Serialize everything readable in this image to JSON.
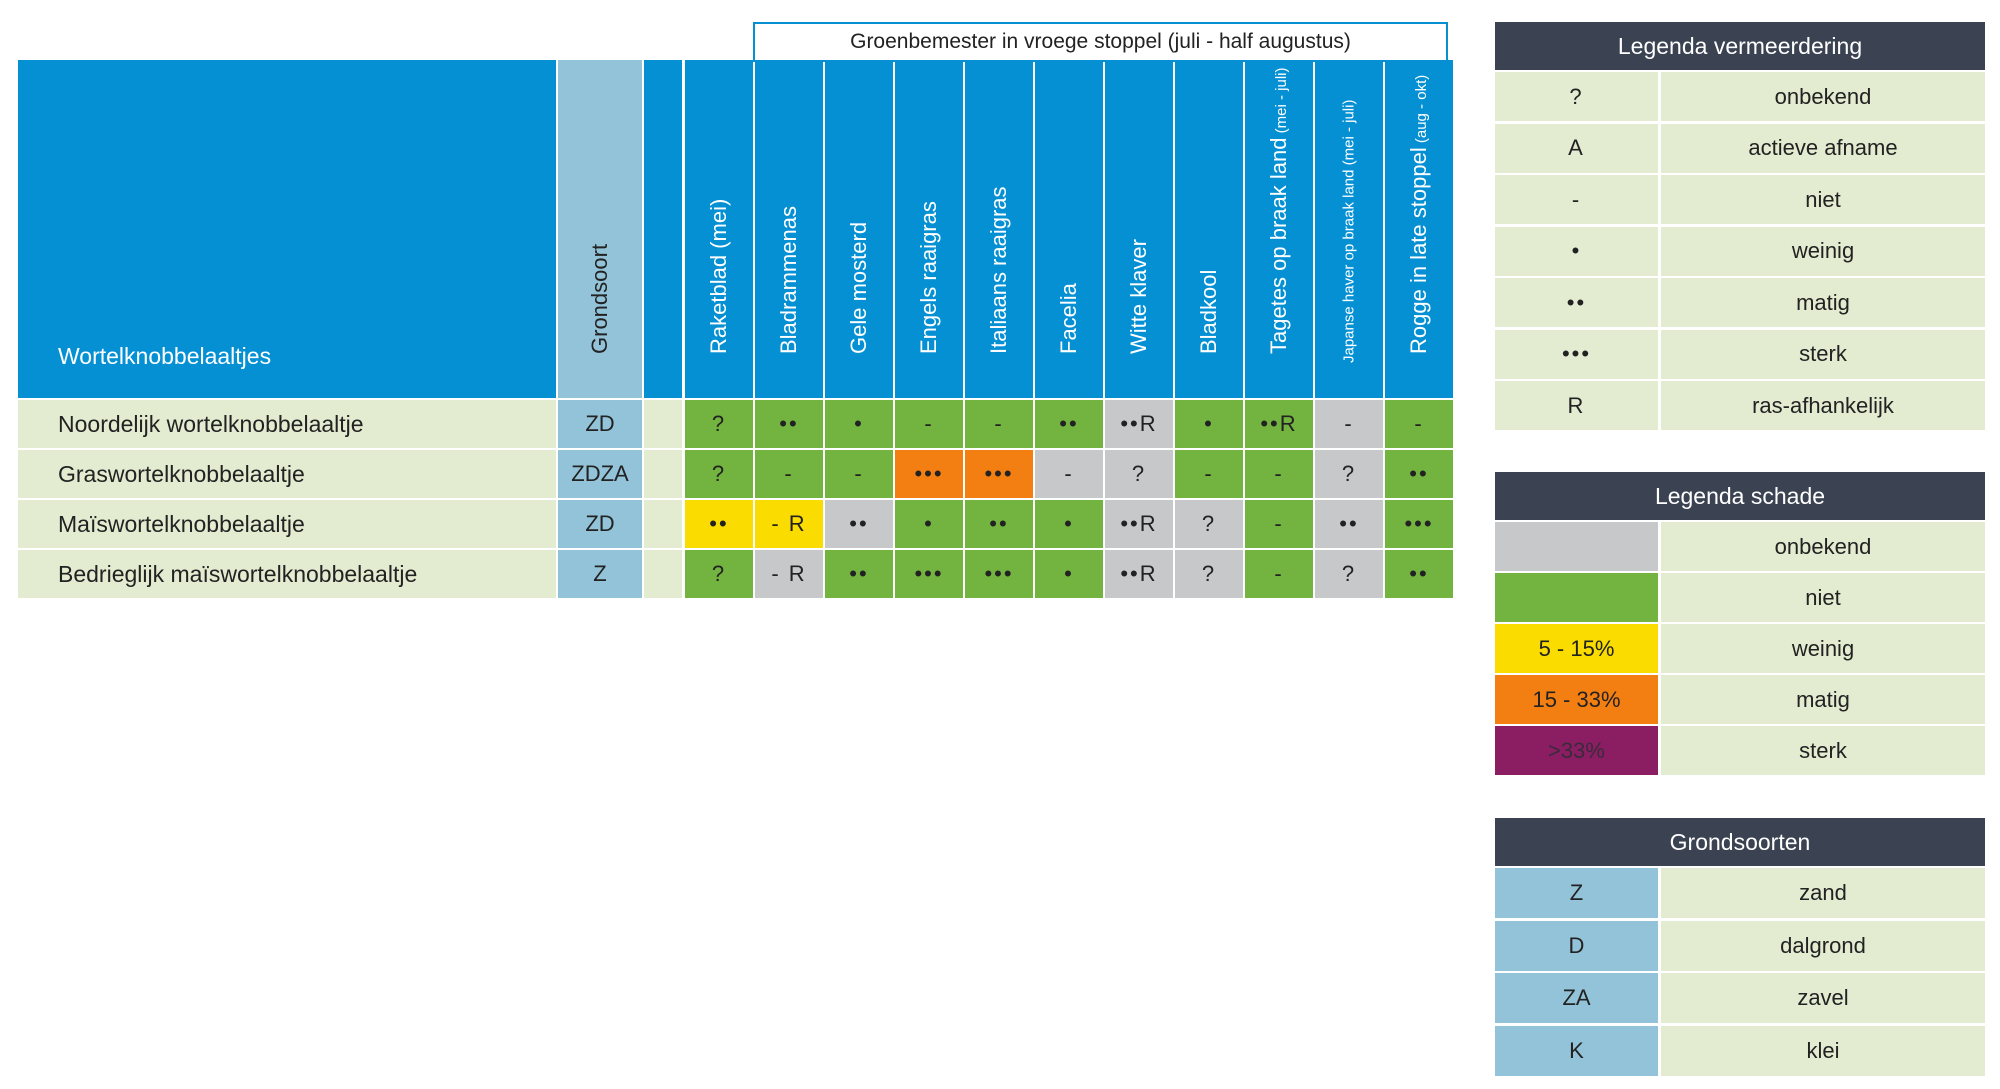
{
  "group_header": "Groenbemester in vroege stoppel (juli - half augustus)",
  "main_header": "Wortelknobbelaaltjes",
  "soil_header": "Grondsoort",
  "crop_headers": [
    {
      "label": "Raketblad (mei)",
      "sub": ""
    },
    {
      "label": "Bladrammenas",
      "sub": ""
    },
    {
      "label": "Gele mosterd",
      "sub": ""
    },
    {
      "label": "Engels raaigras",
      "sub": ""
    },
    {
      "label": "Italiaans raaigras",
      "sub": ""
    },
    {
      "label": "Facelia",
      "sub": ""
    },
    {
      "label": "Witte klaver",
      "sub": ""
    },
    {
      "label": "Bladkool",
      "sub": ""
    },
    {
      "label": "Tagetes op braak land",
      "sub": "(mei - juli)"
    },
    {
      "label": "Japanse haver op braak land (mei - juli)",
      "sub": ""
    },
    {
      "label": "Rogge in late stoppel",
      "sub": "(aug - okt)"
    }
  ],
  "rows": [
    {
      "name": "Noordelijk wortelknobbelaaltje",
      "soil": "ZD",
      "cells": [
        [
          "?",
          "green"
        ],
        [
          "••",
          "green"
        ],
        [
          "•",
          "green"
        ],
        [
          "-",
          "green"
        ],
        [
          "-",
          "green"
        ],
        [
          "••",
          "green"
        ],
        [
          "••R",
          "gray"
        ],
        [
          "•",
          "green"
        ],
        [
          "••R",
          "green"
        ],
        [
          "-",
          "gray"
        ],
        [
          "-",
          "green"
        ]
      ]
    },
    {
      "name": "Graswortelknobbelaaltje",
      "soil": "ZDZA",
      "cells": [
        [
          "?",
          "green"
        ],
        [
          "-",
          "green"
        ],
        [
          "-",
          "green"
        ],
        [
          "•••",
          "orange"
        ],
        [
          "•••",
          "orange"
        ],
        [
          "-",
          "gray"
        ],
        [
          "?",
          "gray"
        ],
        [
          "-",
          "green"
        ],
        [
          "-",
          "green"
        ],
        [
          "?",
          "gray"
        ],
        [
          "••",
          "green"
        ]
      ]
    },
    {
      "name": "Maïswortelknobbelaaltje",
      "soil": "ZD",
      "cells": [
        [
          "••",
          "yellow"
        ],
        [
          "- R",
          "yellow"
        ],
        [
          "••",
          "gray"
        ],
        [
          "•",
          "green"
        ],
        [
          "••",
          "green"
        ],
        [
          "•",
          "green"
        ],
        [
          "••R",
          "gray"
        ],
        [
          "?",
          "gray"
        ],
        [
          "-",
          "green"
        ],
        [
          "••",
          "gray"
        ],
        [
          "•••",
          "green"
        ]
      ]
    },
    {
      "name": "Bedrieglijk maïswortelknobbelaaltje",
      "soil": "Z",
      "cells": [
        [
          "?",
          "green"
        ],
        [
          "- R",
          "gray"
        ],
        [
          "••",
          "green"
        ],
        [
          "•••",
          "green"
        ],
        [
          "•••",
          "green"
        ],
        [
          "•",
          "green"
        ],
        [
          "••R",
          "gray"
        ],
        [
          "?",
          "gray"
        ],
        [
          "-",
          "green"
        ],
        [
          "?",
          "gray"
        ],
        [
          "••",
          "green"
        ]
      ]
    }
  ],
  "legend_vermeerdering": {
    "title": "Legenda vermeerdering",
    "items": [
      {
        "symbol": "?",
        "label": "onbekend"
      },
      {
        "symbol": "A",
        "label": "actieve afname"
      },
      {
        "symbol": "-",
        "label": "niet"
      },
      {
        "symbol": "•",
        "label": "weinig"
      },
      {
        "symbol": "••",
        "label": "matig"
      },
      {
        "symbol": "•••",
        "label": "sterk"
      },
      {
        "symbol": "R",
        "label": "ras-afhankelijk"
      }
    ]
  },
  "legend_schade": {
    "title": "Legenda schade",
    "items": [
      {
        "swatch": "",
        "label": "onbekend",
        "color": "#c6c8c9",
        "textcolor": "#222"
      },
      {
        "swatch": "",
        "label": "niet",
        "color": "#73b33f",
        "textcolor": "#222"
      },
      {
        "swatch": "5 - 15%",
        "label": "weinig",
        "color": "#fbdc00",
        "textcolor": "#222"
      },
      {
        "swatch": "15 - 33%",
        "label": "matig",
        "color": "#f37f12",
        "textcolor": "#222"
      },
      {
        "swatch": ">33%",
        "label": "sterk",
        "color": "#8b1e63",
        "textcolor": "#3a2a3a"
      }
    ]
  },
  "legend_grond": {
    "title": "Grondsoorten",
    "items": [
      {
        "code": "Z",
        "label": "zand"
      },
      {
        "code": "D",
        "label": "dalgrond"
      },
      {
        "code": "ZA",
        "label": "zavel"
      },
      {
        "code": "K",
        "label": "klei"
      }
    ]
  },
  "colors": {
    "header_blue": "#0590d4",
    "soil_blue": "#93c3d8",
    "row_light_green": "#e3ecd0",
    "green": "#73b33f",
    "gray": "#c6c8c9",
    "yellow": "#fbdc00",
    "orange": "#f37f12",
    "legend_dark": "#3b4352"
  }
}
